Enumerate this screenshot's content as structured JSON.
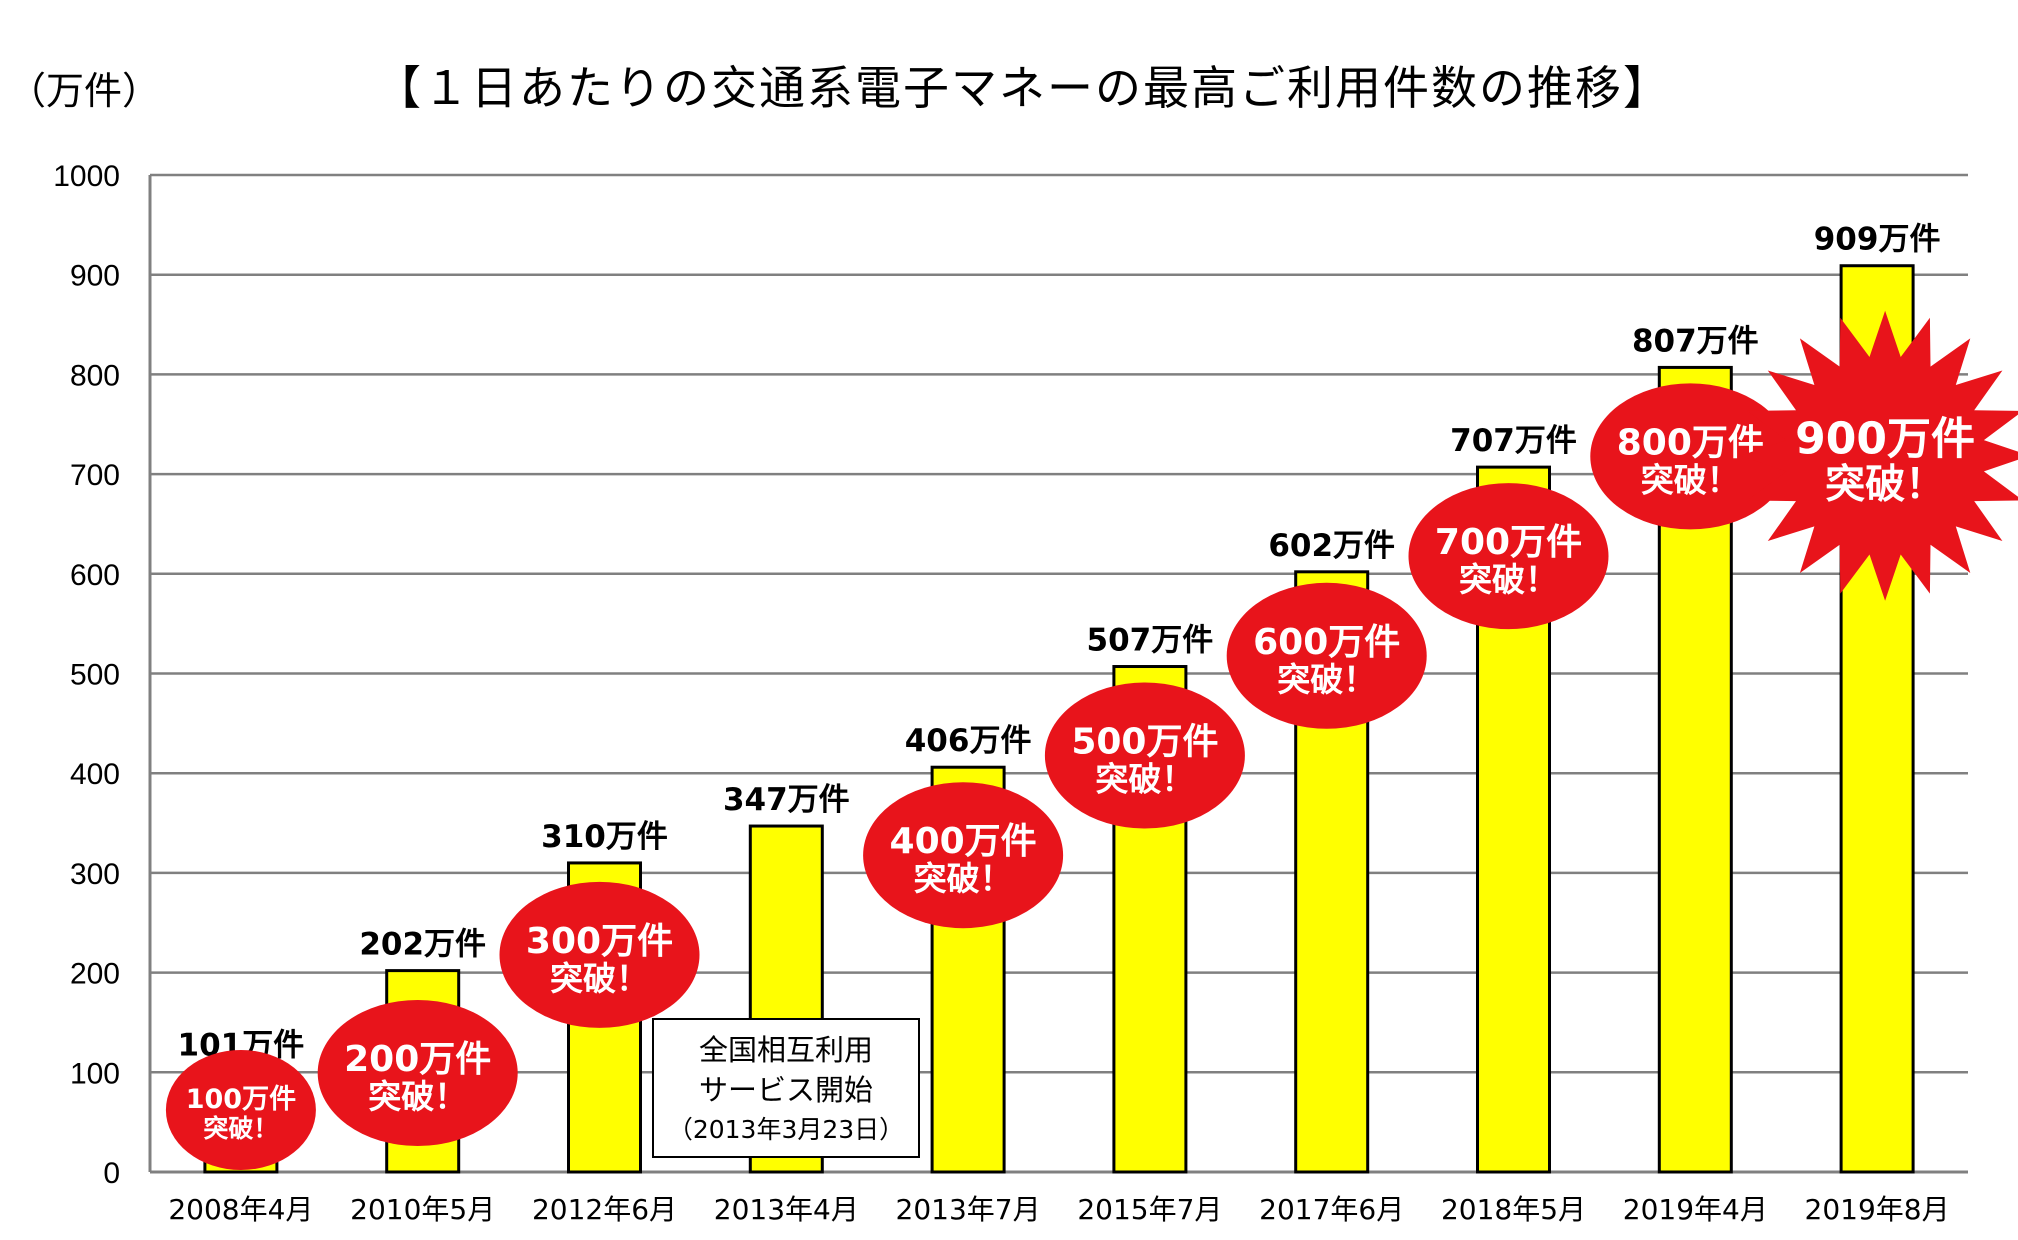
{
  "unit_label": "（万件）",
  "title": "【１日あたりの交通系電子マネーの最高ご利用件数の推移】",
  "note": {
    "line1": "全国相互利用",
    "line2": "サービス開始",
    "line3": "（2013年3月23日）"
  },
  "colors": {
    "bar": "#ffff00",
    "badge": "#e8141b",
    "grid": "#808080"
  },
  "chart_data": {
    "type": "bar",
    "categories": [
      "2008年4月",
      "2010年5月",
      "2012年6月",
      "2013年4月",
      "2013年7月",
      "2015年7月",
      "2017年6月",
      "2018年5月",
      "2019年4月",
      "2019年8月"
    ],
    "values": [
      101,
      202,
      310,
      347,
      406,
      507,
      602,
      707,
      807,
      909
    ],
    "value_labels": [
      "101万件",
      "202万件",
      "310万件",
      "347万件",
      "406万件",
      "507万件",
      "602万件",
      "707万件",
      "807万件",
      "909万件"
    ],
    "ylim": [
      0,
      1000
    ],
    "yticks": [
      0,
      100,
      200,
      300,
      400,
      500,
      600,
      700,
      800,
      900,
      1000
    ],
    "grid": true,
    "annotations": [
      {
        "category_index": 0,
        "line1": "100万件",
        "line2": "突破！",
        "shape": "oval"
      },
      {
        "category_index": 1,
        "line1": "200万件",
        "line2": "突破！",
        "shape": "oval"
      },
      {
        "category_index": 2,
        "line1": "300万件",
        "line2": "突破！",
        "shape": "oval"
      },
      {
        "category_index": 4,
        "line1": "400万件",
        "line2": "突破！",
        "shape": "oval"
      },
      {
        "category_index": 5,
        "line1": "500万件",
        "line2": "突破！",
        "shape": "oval"
      },
      {
        "category_index": 6,
        "line1": "600万件",
        "line2": "突破！",
        "shape": "oval"
      },
      {
        "category_index": 7,
        "line1": "700万件",
        "line2": "突破！",
        "shape": "oval"
      },
      {
        "category_index": 8,
        "line1": "800万件",
        "line2": "突破！",
        "shape": "oval"
      },
      {
        "category_index": 9,
        "line1": "900万件",
        "line2": "突破！",
        "shape": "burst"
      }
    ]
  }
}
